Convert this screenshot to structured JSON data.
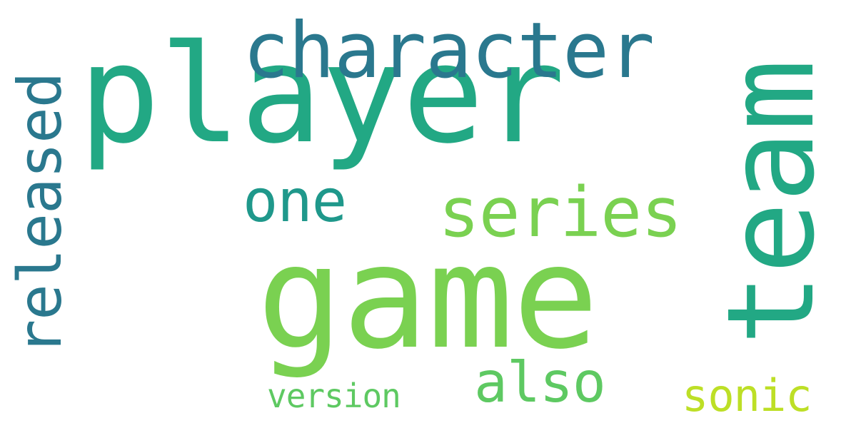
{
  "words": [
    {
      "id": "player",
      "text": "player",
      "color": "#22a884"
    },
    {
      "id": "game",
      "text": "game",
      "color": "#7ad151"
    },
    {
      "id": "team",
      "text": "team",
      "color": "#22a884"
    },
    {
      "id": "character",
      "text": "character",
      "color": "#2a788e"
    },
    {
      "id": "released",
      "text": "released",
      "color": "#2a788e"
    },
    {
      "id": "series",
      "text": "series",
      "color": "#7ad151"
    },
    {
      "id": "one",
      "text": "one",
      "color": "#1f988b"
    },
    {
      "id": "also",
      "text": "also",
      "color": "#5ec962"
    },
    {
      "id": "sonic",
      "text": "sonic",
      "color": "#bddf26"
    },
    {
      "id": "version",
      "text": "version",
      "color": "#5ec962"
    }
  ]
}
